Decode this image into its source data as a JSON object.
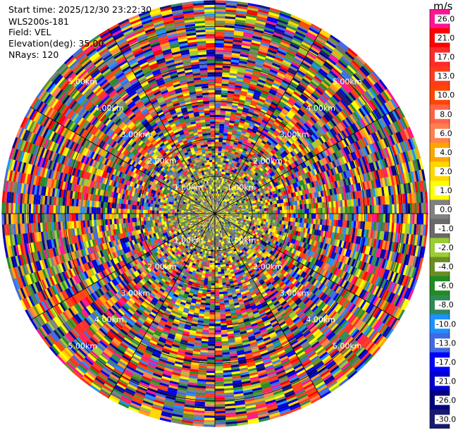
{
  "info": {
    "start_time": "Start time: 2025/12/30 23:22:30",
    "instrument": "WLS200s-181",
    "field": "Field: VEL",
    "elevation": "Elevation(deg): 35.00",
    "nrays": "NRays: 120"
  },
  "colorbar": {
    "unit": "m/s",
    "ticks": [
      "26.0",
      "21.0",
      "17.0",
      "13.0",
      "10.0",
      "8.0",
      "6.0",
      "4.0",
      "2.0",
      "1.0",
      "0.0",
      "-1.0",
      "-2.0",
      "-4.0",
      "-6.0",
      "-8.0",
      "-10.0",
      "-13.0",
      "-17.0",
      "-21.0",
      "-26.0",
      "-30.0"
    ],
    "colors": [
      "#ff1493",
      "#ff0000",
      "#ff2a2a",
      "#ff3b1e",
      "#ff4500",
      "#ff6347",
      "#ff7f50",
      "#ffa500",
      "#ffd700",
      "#ffff00",
      "#808080",
      "#696969",
      "#9acd32",
      "#6b8e23",
      "#228b22",
      "#2e8b57",
      "#1e90ff",
      "#4169e1",
      "#0000ff",
      "#0000cd",
      "#000080",
      "#191970"
    ]
  },
  "chart_data": {
    "type": "heatmap",
    "projection": "polar PPI",
    "field": "VEL",
    "unit": "m/s",
    "n_rays": 120,
    "elevation_deg": 35.0,
    "range_rings": [
      "1.00km",
      "2.00km",
      "3.00km",
      "4.00km",
      "5.00km"
    ],
    "range_ring_values_km": [
      1,
      2,
      3,
      4,
      5
    ],
    "max_range_km": 5.7,
    "vmin": -30,
    "vmax": 30,
    "pattern": "near-zero velocities (grey/yellow-green) within ~1.5 km; random noise values beyond"
  }
}
